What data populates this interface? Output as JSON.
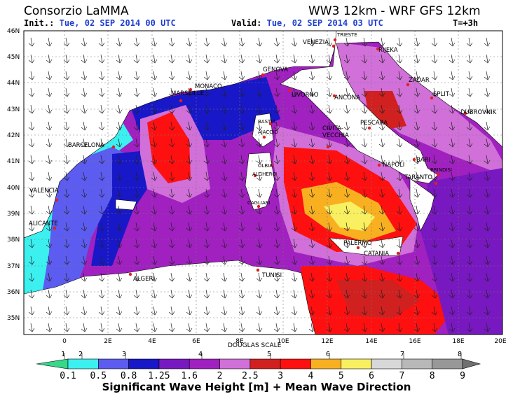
{
  "header": {
    "left_title": "Consorzio LaMMA",
    "right_title": "WW3 12km - WRF GFS 12km",
    "init_label": "Init.:",
    "init_value": "Tue, 02 SEP 2014  00 UTC",
    "valid_label": "Valid:",
    "valid_value": "Tue, 02 SEP 2014  03 UTC",
    "step": "T=+3h"
  },
  "map": {
    "lat_labels": [
      "46N",
      "45N",
      "44N",
      "43N",
      "42N",
      "41N",
      "40N",
      "39N",
      "38N",
      "37N",
      "36N",
      "35N"
    ],
    "lon_labels": [
      "0",
      "2E",
      "4E",
      "6E",
      "8E",
      "10E",
      "12E",
      "14E",
      "16E",
      "18E",
      "20E"
    ],
    "cities": [
      "TRIESTE",
      "VENEZIA",
      "RIJEKA",
      "GENOVA",
      "ZADAR",
      "MONACO",
      "LIVORNO",
      "ANCONA",
      "SPLIT",
      "MARSEILLE",
      "DUBROVNIK",
      "BASTIA",
      "PESCARA",
      "AJACCIO",
      "CIVITA-",
      "VECCHIA",
      "BARCELONA",
      "OLBIA",
      "NAPOLI",
      "BARI",
      "ALGHERO",
      "BRINDISI",
      "VALENCIA",
      "TARANTO",
      "CAGLIARI",
      "ALICANTE",
      "PALERMO",
      "CATANIA",
      "ALGERI",
      "TUNISI"
    ],
    "colors": {
      "land": "#ffffff",
      "sea_low": "#5cf0e8"
    }
  },
  "legend": {
    "scale_title": "DOUGLAS SCALE",
    "douglas_numbers": [
      "1",
      "2",
      "3",
      "4",
      "5",
      "6",
      "7",
      "8"
    ],
    "value_labels": [
      "0.1",
      "0.5",
      "0.8",
      "1.25",
      "1.6",
      "2",
      "2.5",
      "3",
      "4",
      "5",
      "6",
      "7",
      "8",
      "9"
    ],
    "colors": [
      "#36d88a",
      "#3cf0f0",
      "#5c5cf0",
      "#1818c8",
      "#7818c0",
      "#a020c0",
      "#d070d8",
      "#d02020",
      "#ff1010",
      "#f8b020",
      "#f8f060",
      "#d8d8d8",
      "#b8b8b8",
      "#989898",
      "#707070"
    ],
    "title": "Significant Wave Height [m] + Mean Wave Direction"
  }
}
